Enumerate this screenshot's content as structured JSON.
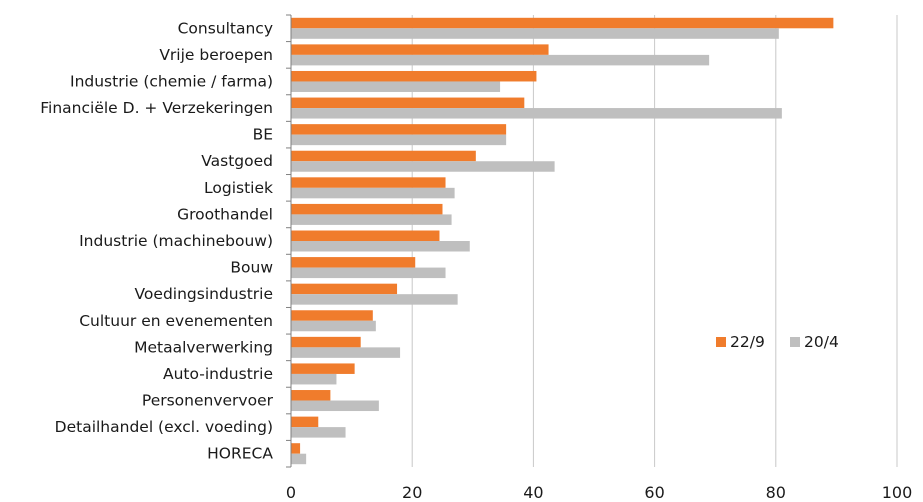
{
  "chart_data": {
    "type": "bar",
    "orientation": "horizontal",
    "categories": [
      "Consultancy",
      "Vrije beroepen",
      "Industrie (chemie / farma)",
      "Financiële D. + Verzekeringen",
      "BE",
      "Vastgoed",
      "Logistiek",
      "Groothandel",
      "Industrie (machinebouw)",
      "Bouw",
      "Voedingsindustrie",
      "Cultuur en evenementen",
      "Metaalverwerking",
      "Auto-industrie",
      "Personenvervoer",
      "Detailhandel (excl. voeding)",
      "HORECA"
    ],
    "series": [
      {
        "name": "22/9",
        "color": "#f07c2c",
        "values": [
          89.5,
          42.5,
          40.5,
          38.5,
          35.5,
          30.5,
          25.5,
          25,
          24.5,
          20.5,
          17.5,
          13.5,
          11.5,
          10.5,
          6.5,
          4.5,
          1.5
        ]
      },
      {
        "name": "20/4",
        "color": "#bfbfbf",
        "values": [
          80.5,
          69,
          34.5,
          81,
          35.5,
          43.5,
          27,
          26.5,
          29.5,
          25.5,
          27.5,
          14,
          18,
          7.5,
          14.5,
          9,
          2.5
        ]
      }
    ],
    "xlim": [
      0,
      100
    ],
    "xticks": [
      0,
      20,
      40,
      60,
      80,
      100
    ],
    "grid": "vertical",
    "legend_position": "right"
  }
}
